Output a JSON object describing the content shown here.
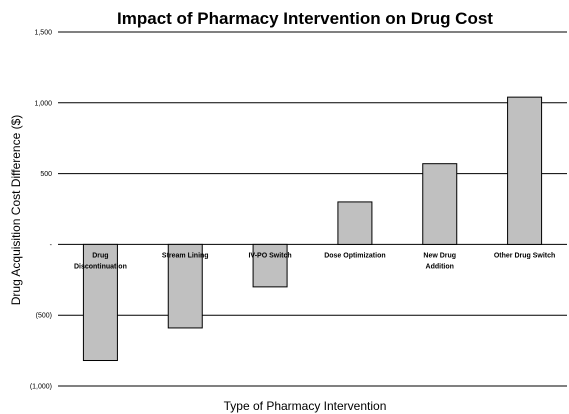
{
  "chart_data": {
    "type": "bar",
    "title": "Impact of Pharmacy Intervention on Drug Cost",
    "xlabel": "Type of Pharmacy Intervention",
    "ylabel": "Drug Acquisition Cost Difference ($)",
    "categories": [
      [
        "Drug",
        "Discontinuation"
      ],
      [
        "Stream Lining"
      ],
      [
        "IV-PO Switch"
      ],
      [
        "Dose Optimization"
      ],
      [
        "New Drug",
        "Addition"
      ],
      [
        "Other Drug Switch"
      ]
    ],
    "values": [
      -820,
      -590,
      -300,
      300,
      570,
      1040
    ],
    "ylim": [
      -1000,
      1500
    ],
    "yticks": [
      1500,
      1000,
      500,
      0,
      -500,
      -1000
    ],
    "ytick_labels": [
      "1,500",
      "1,000",
      "500",
      "-",
      "(500)",
      "(1,000)"
    ],
    "grid": true,
    "bar_color": "#c0c0c0",
    "bar_edge_color": "#000000"
  }
}
